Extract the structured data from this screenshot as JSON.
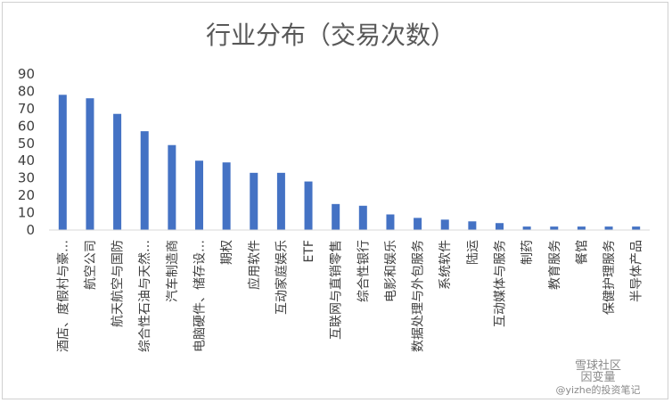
{
  "chart_data": {
    "type": "bar",
    "title": "行业分布（交易次数）",
    "xlabel": "",
    "ylabel": "",
    "ylim": [
      0,
      90
    ],
    "yticks": [
      0,
      10,
      20,
      30,
      40,
      50,
      60,
      70,
      80,
      90
    ],
    "grid": false,
    "legend": "none",
    "bar_color": "#4472c4",
    "categories": [
      "酒店、度假村与豪…",
      "航空公司",
      "航天航空与国防",
      "综合性石油与天然…",
      "汽车制造商",
      "电脑硬件、储存设…",
      "期权",
      "应用软件",
      "互动家庭娱乐",
      "ETF",
      "互联网与直销零售",
      "综合性银行",
      "电影和娱乐",
      "数据处理与外包服务",
      "系统软件",
      "陆运",
      "互动媒体与服务",
      "制药",
      "教育服务",
      "餐馆",
      "保健护理服务",
      "半导体产品"
    ],
    "values": [
      78,
      76,
      67,
      57,
      49,
      40,
      39,
      33,
      33,
      28,
      15,
      14,
      9,
      7,
      6,
      5,
      4,
      2,
      2,
      2,
      2,
      2
    ]
  },
  "watermark": {
    "line1": "雪球社区",
    "line2": "因变量",
    "line3": "@yizhe的投资笔记"
  }
}
